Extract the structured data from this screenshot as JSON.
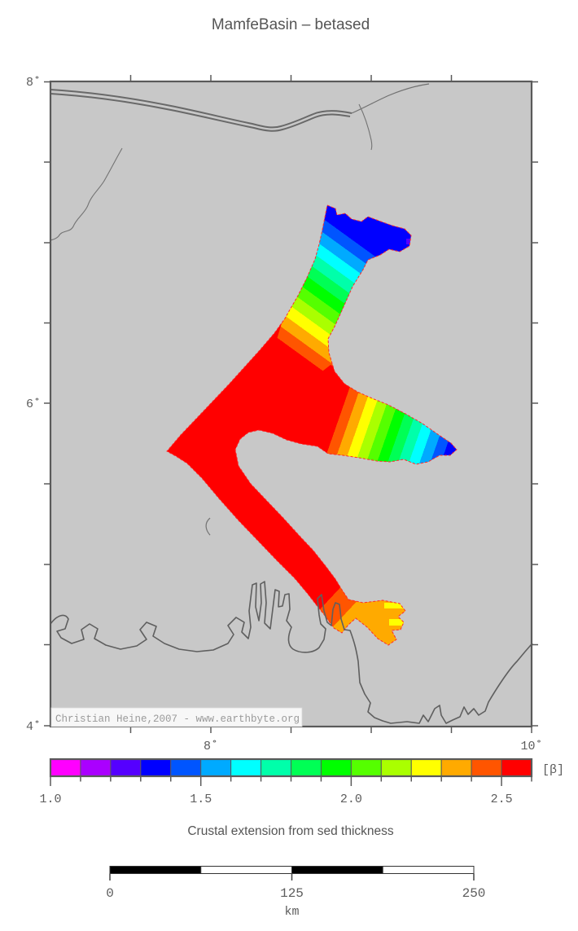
{
  "title": "MamfeBasin – betased",
  "map": {
    "left_axis_labels": [
      "8˚",
      "6˚",
      "4˚"
    ],
    "bottom_axis_labels": [
      "8˚",
      "10˚"
    ],
    "attribution": "Christian Heine,2007 - www.earthbyte.org"
  },
  "colorbar": {
    "unit_label": "[β]",
    "tick_labels": [
      "1.0",
      "1.5",
      "2.0",
      "2.5"
    ],
    "min": 1.0,
    "max": 2.6,
    "colors": [
      "#ff00ff",
      "#aa00ff",
      "#5500ff",
      "#0000ff",
      "#0055ff",
      "#00aaff",
      "#00ffff",
      "#00ffaa",
      "#00ff55",
      "#00ff00",
      "#55ff00",
      "#aaff00",
      "#ffff00",
      "#ffaa00",
      "#ff5500",
      "#ff0000"
    ]
  },
  "caption": "Crustal extension from sed thickness",
  "scale_bar": {
    "tick_labels": [
      "0",
      "125",
      "250"
    ],
    "unit_label": "km"
  },
  "palette": {
    "land_gray": "#c8c8c8",
    "frame_gray": "#5a5a5a",
    "coast_gray": "#5f5f5f",
    "basin_outline_red": "#ff2a2a",
    "text_gray": "#5d5d5d",
    "attribution_text": "#9a9a9a"
  }
}
